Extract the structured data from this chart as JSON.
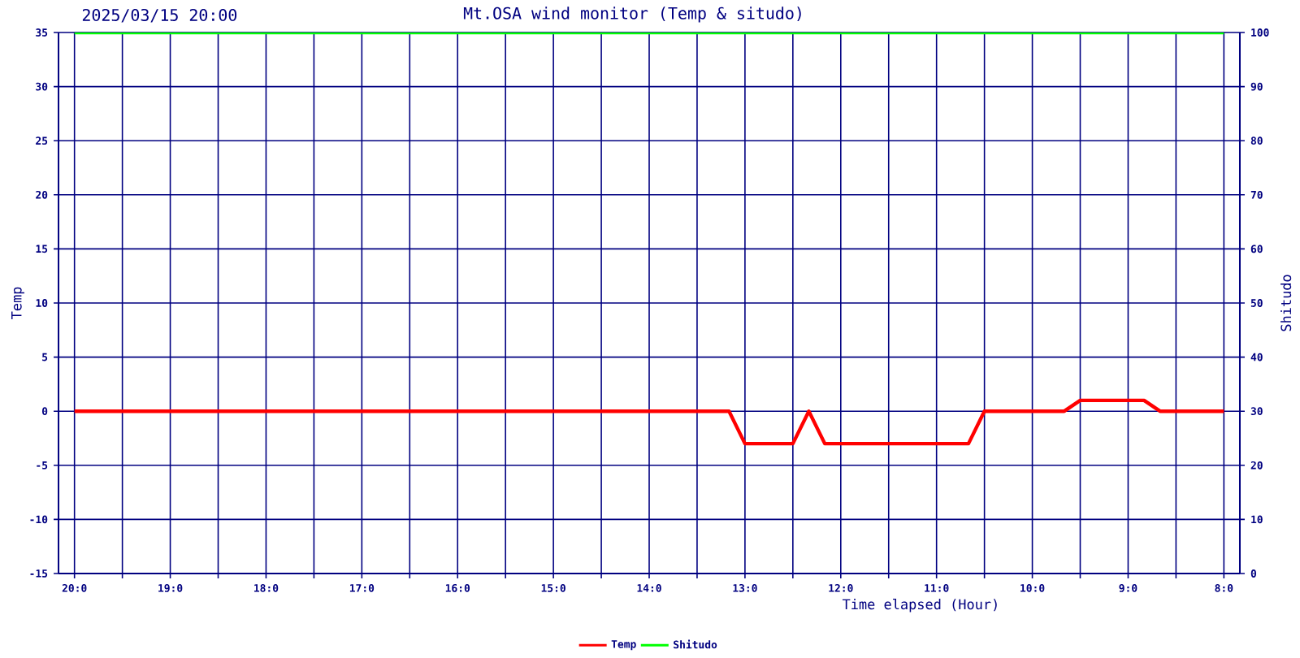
{
  "chart_data": {
    "type": "line",
    "title": "Mt.OSA wind monitor (Temp & situdo)",
    "subtitle": "2025/03/15 20:00",
    "xlabel": "Time elapsed (Hour)",
    "ylabel": "Temp",
    "y2label": "Shitudo",
    "categories": [
      "20:0",
      null,
      null,
      null,
      null,
      null,
      "19:0",
      null,
      null,
      null,
      null,
      null,
      "18:0",
      null,
      null,
      null,
      null,
      null,
      "17:0",
      null,
      null,
      null,
      null,
      null,
      "16:0",
      null,
      null,
      null,
      null,
      null,
      "15:0",
      null,
      null,
      null,
      null,
      null,
      "14:0",
      null,
      null,
      null,
      null,
      null,
      "13:0",
      null,
      null,
      null,
      null,
      null,
      "12:0",
      null,
      null,
      null,
      null,
      null,
      "11:0",
      null,
      null,
      null,
      null,
      null,
      "10:0",
      null,
      null,
      null,
      null,
      null,
      "9:0",
      null,
      null,
      null,
      null,
      null,
      "8:0"
    ],
    "series": [
      {
        "name": "Temp",
        "color": "#ff0000",
        "values": [
          0,
          0,
          0,
          0,
          0,
          0,
          0,
          0,
          0,
          0,
          0,
          0,
          0,
          0,
          0,
          0,
          0,
          0,
          0,
          0,
          0,
          0,
          0,
          0,
          0,
          0,
          0,
          0,
          0,
          0,
          0,
          0,
          0,
          0,
          0,
          0,
          0,
          0,
          0,
          0,
          0,
          0,
          -3,
          -3,
          -3,
          -3,
          0,
          -3,
          -3,
          -3,
          -3,
          -3,
          -3,
          -3,
          -3,
          -3,
          -3,
          0,
          0,
          0,
          0,
          0,
          0,
          1,
          1,
          1,
          1,
          1,
          0,
          0,
          0,
          0,
          0
        ]
      },
      {
        "name": "Shitudo",
        "color": "#00ff00",
        "axis": "y2",
        "values": [
          100,
          100,
          100,
          100,
          100,
          100,
          100,
          100,
          100,
          100,
          100,
          100,
          100,
          100,
          100,
          100,
          100,
          100,
          100,
          100,
          100,
          100,
          100,
          100,
          100,
          100,
          100,
          100,
          100,
          100,
          100,
          100,
          100,
          100,
          100,
          100,
          100,
          100,
          100,
          100,
          100,
          100,
          100,
          100,
          100,
          100,
          100,
          100,
          100,
          100,
          100,
          100,
          100,
          100,
          100,
          100,
          100,
          100,
          100,
          100,
          100,
          100,
          100,
          100,
          100,
          100,
          100,
          100,
          100,
          100,
          100,
          100,
          100
        ]
      }
    ],
    "ylim": [
      -15,
      35
    ],
    "yticks": [
      -15,
      -10,
      -5,
      0,
      5,
      10,
      15,
      20,
      25,
      30,
      35
    ],
    "y2lim": [
      0,
      100
    ],
    "y2ticks": [
      0,
      10,
      20,
      30,
      40,
      50,
      60,
      70,
      80,
      90,
      100
    ],
    "grid": true,
    "legend": "bottom",
    "marker": "none",
    "line_style": "solid"
  }
}
